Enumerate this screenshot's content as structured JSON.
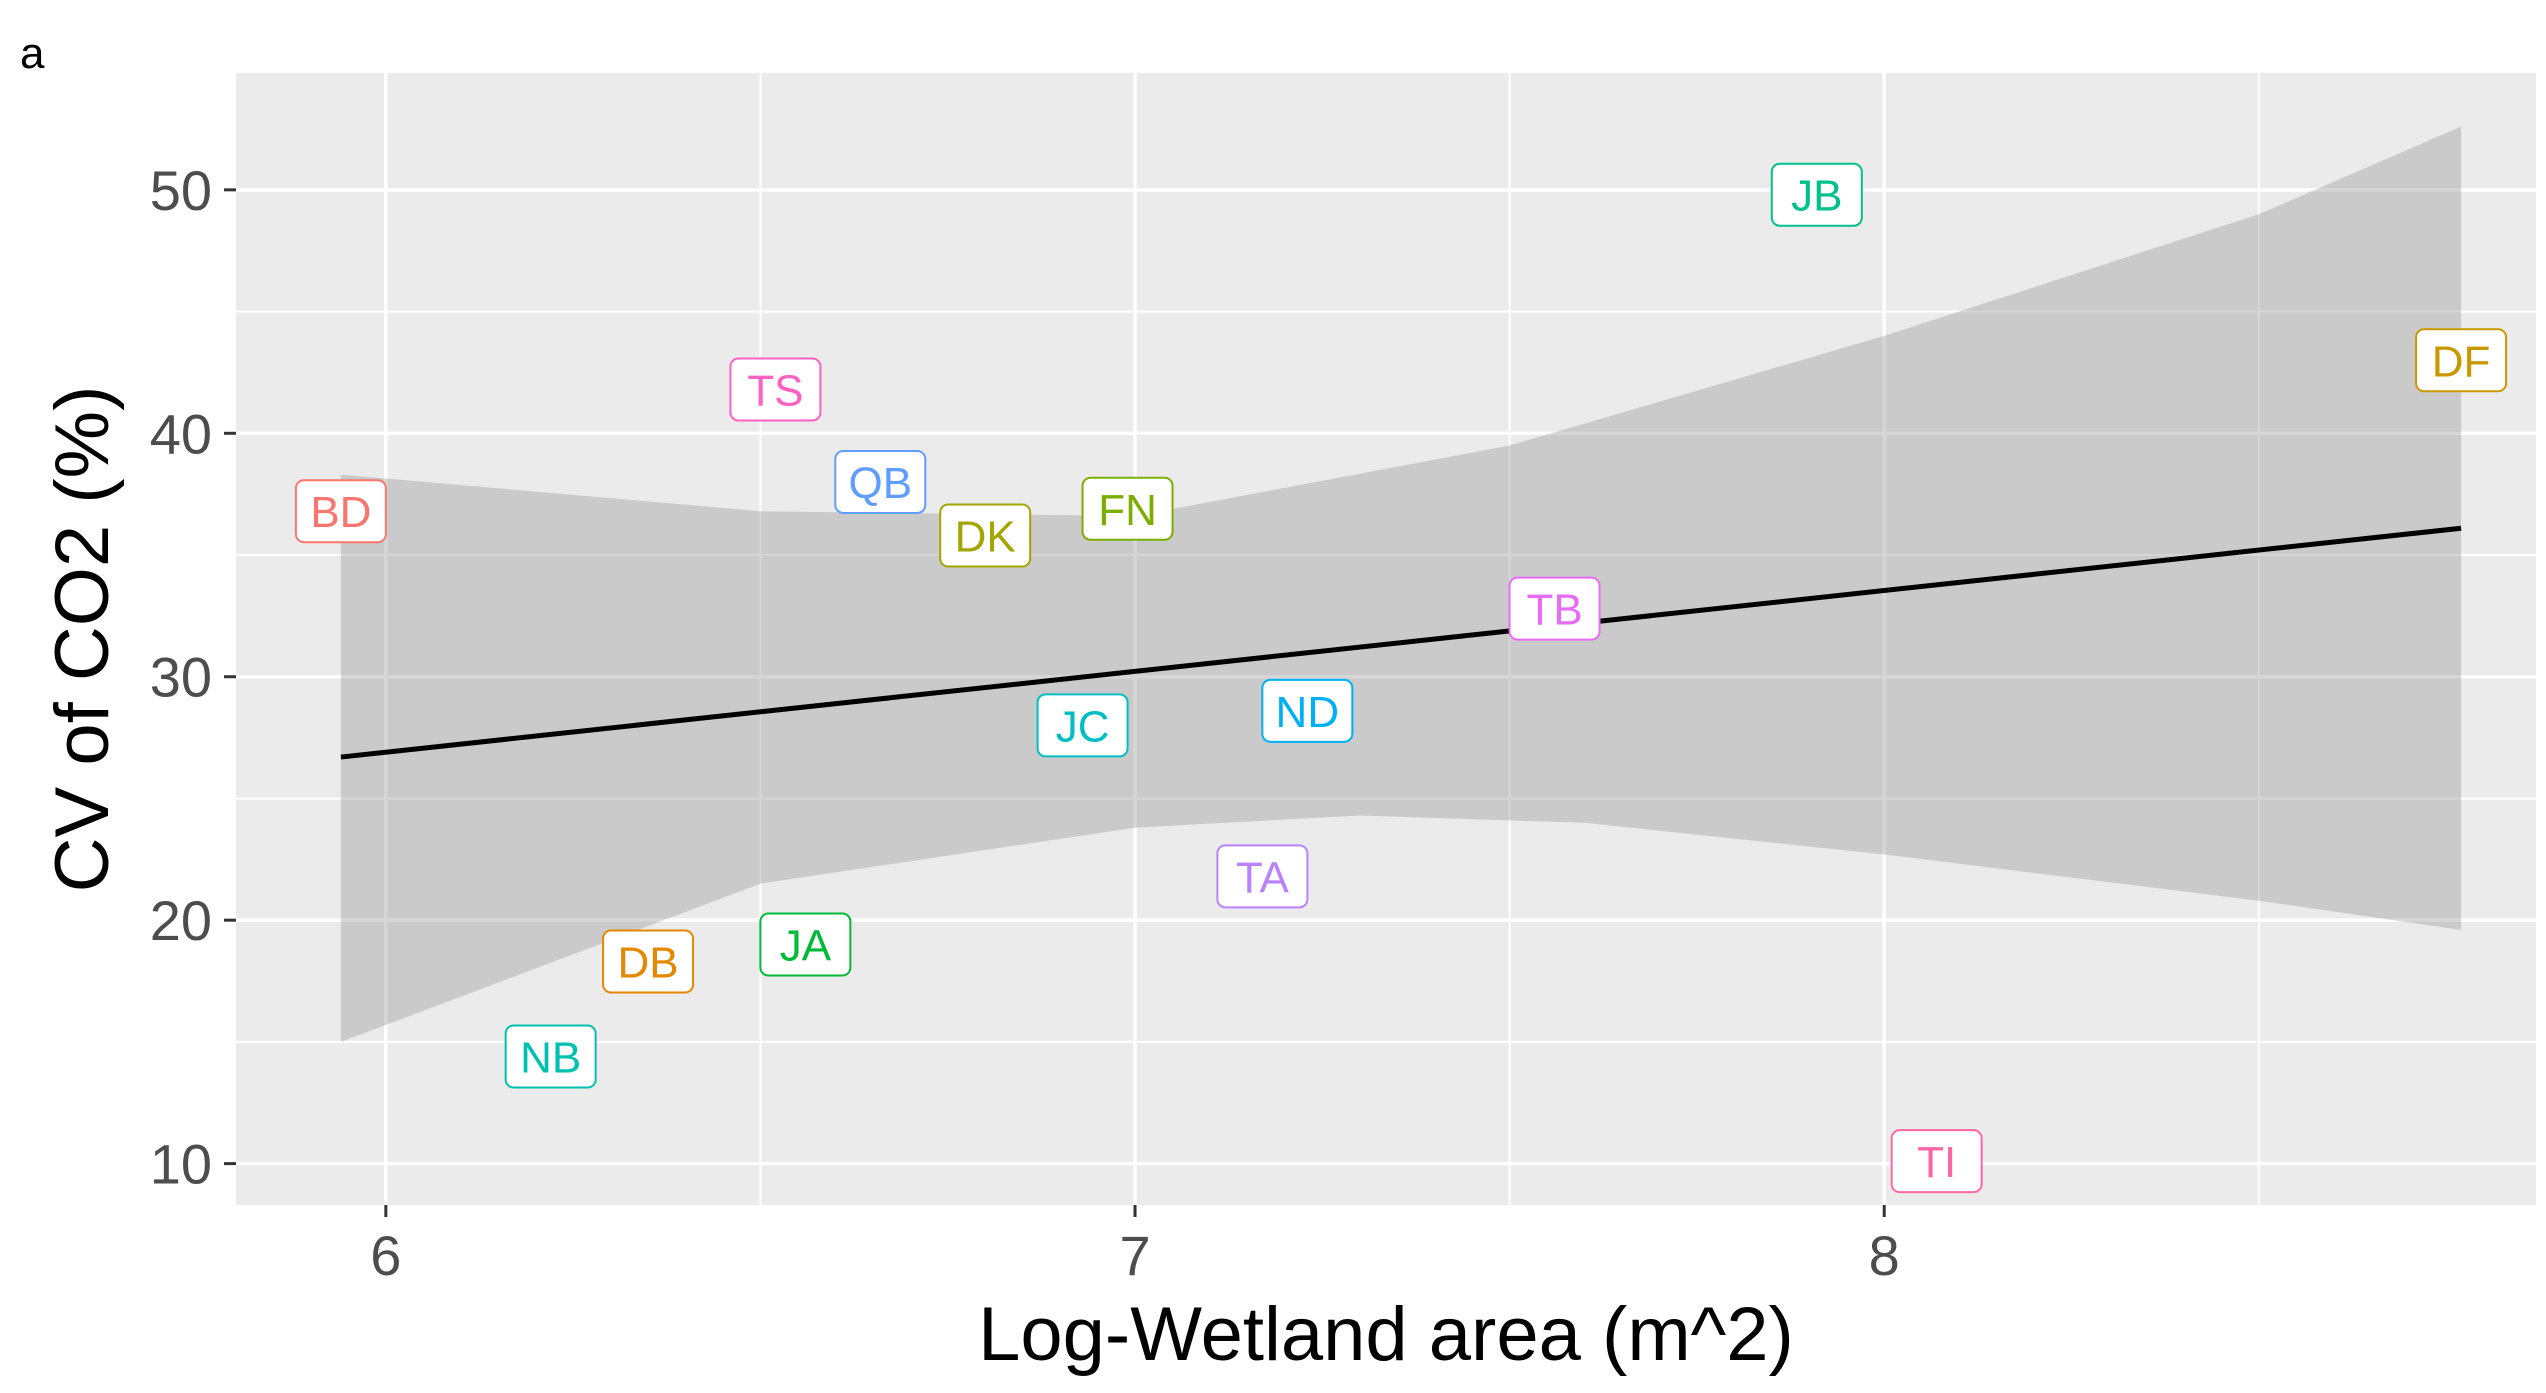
{
  "panel_tag": "a",
  "chart_data": {
    "type": "scatter",
    "xlabel": "Log-Wetland area (m^2)",
    "ylabel": "CV of CO2 (%)",
    "xlim": [
      5.8,
      8.87
    ],
    "ylim": [
      8.3,
      54.8
    ],
    "x_ticks": [
      6,
      7,
      8
    ],
    "x_tick_labels": [
      "6",
      "7",
      "8"
    ],
    "y_ticks": [
      10,
      20,
      30,
      40,
      50
    ],
    "y_tick_labels": [
      "10",
      "20",
      "30",
      "40",
      "50"
    ],
    "grid": true,
    "background": "#ebebeb",
    "points": [
      {
        "label": "BD",
        "x": 5.94,
        "y": 36.8,
        "color": "#F8766D"
      },
      {
        "label": "TS",
        "x": 6.52,
        "y": 41.8,
        "color": "#FF61C3"
      },
      {
        "label": "QB",
        "x": 6.66,
        "y": 38.0,
        "color": "#619CFF"
      },
      {
        "label": "DK",
        "x": 6.8,
        "y": 35.8,
        "color": "#A3A500"
      },
      {
        "label": "FN",
        "x": 6.99,
        "y": 36.9,
        "color": "#7CAE00"
      },
      {
        "label": "JC",
        "x": 6.93,
        "y": 28.0,
        "color": "#00BFC4"
      },
      {
        "label": "ND",
        "x": 7.23,
        "y": 28.6,
        "color": "#00B0F6"
      },
      {
        "label": "TB",
        "x": 7.56,
        "y": 32.8,
        "color": "#E76BF3"
      },
      {
        "label": "TA",
        "x": 7.17,
        "y": 21.8,
        "color": "#B983FF"
      },
      {
        "label": "JA",
        "x": 6.56,
        "y": 19.0,
        "color": "#00BA38"
      },
      {
        "label": "DB",
        "x": 6.35,
        "y": 18.3,
        "color": "#E58700"
      },
      {
        "label": "NB",
        "x": 6.22,
        "y": 14.4,
        "color": "#00C0AF"
      },
      {
        "label": "JB",
        "x": 7.91,
        "y": 49.8,
        "color": "#00C08B"
      },
      {
        "label": "DF",
        "x": 8.77,
        "y": 43.0,
        "color": "#C99800"
      },
      {
        "label": "TI",
        "x": 8.07,
        "y": 10.1,
        "color": "#FF67A4"
      }
    ],
    "trend": {
      "x": [
        5.94,
        8.77
      ],
      "y": [
        26.7,
        36.1
      ],
      "color": "#000000"
    },
    "confidence_band": {
      "upper": [
        [
          5.94,
          38.3
        ],
        [
          6.5,
          36.8
        ],
        [
          7.0,
          36.6
        ],
        [
          7.5,
          39.5
        ],
        [
          8.0,
          44.0
        ],
        [
          8.5,
          49.0
        ],
        [
          8.77,
          52.6
        ]
      ],
      "lower": [
        [
          5.94,
          15.0
        ],
        [
          6.5,
          21.5
        ],
        [
          7.0,
          23.8
        ],
        [
          7.3,
          24.3
        ],
        [
          7.6,
          24.0
        ],
        [
          8.0,
          22.7
        ],
        [
          8.5,
          20.8
        ],
        [
          8.77,
          19.6
        ]
      ],
      "color": "#999999"
    }
  }
}
